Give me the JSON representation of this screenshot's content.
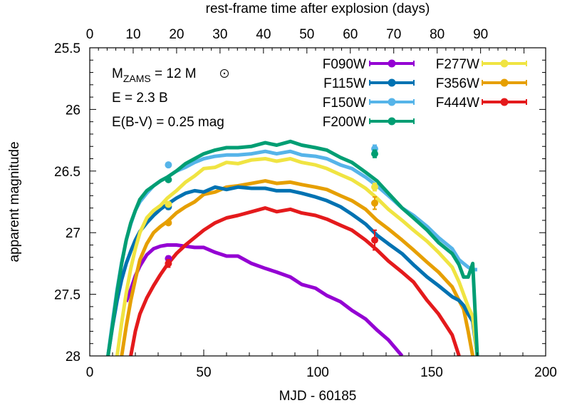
{
  "chart_data": {
    "type": "line",
    "title": "",
    "xlabel": "MJD - 60185",
    "ylabel": "apparent magnitude",
    "x2label": "rest-frame time after explosion (days)",
    "xlim": [
      0,
      200
    ],
    "ylim": [
      28,
      25.5
    ],
    "y_inverted": true,
    "xticks": [
      0,
      50,
      100,
      150,
      200
    ],
    "yticks": [
      25.5,
      26,
      26.5,
      27,
      27.5,
      28
    ],
    "ytick_labels": [
      "25.5",
      "26",
      "26.5",
      "27",
      "27.5",
      "28"
    ],
    "x2ticks": [
      0,
      10,
      20,
      30,
      40,
      50,
      60,
      70,
      80,
      90
    ],
    "x2_offset_mjd": 0,
    "x2_scale": 1.905,
    "grid": false,
    "legend_position": "upper right",
    "annotations": [
      {
        "text_main": "M",
        "text_sub": "ZAMS",
        "text_rest": " = 12 M",
        "symbol": "sun-symbol"
      },
      {
        "text": "E = 2.3 B"
      },
      {
        "text": "E(B-V) = 0.25 mag"
      }
    ],
    "x": [
      8,
      10,
      12,
      14,
      16,
      18,
      20,
      22,
      25,
      28,
      31,
      34,
      38,
      42,
      46,
      50,
      55,
      60,
      65,
      71,
      77,
      82,
      88,
      93,
      99,
      104,
      110,
      115,
      121,
      126,
      131,
      137,
      142,
      148,
      153,
      159,
      162,
      164,
      166,
      168,
      170
    ],
    "series": [
      {
        "name": "F090W",
        "color": "#9400d3",
        "values": [
          null,
          null,
          null,
          null,
          27.56,
          27.46,
          27.35,
          27.27,
          27.18,
          27.13,
          27.11,
          27.1,
          27.1,
          27.11,
          27.12,
          27.12,
          27.16,
          27.19,
          27.19,
          27.25,
          27.29,
          27.32,
          27.36,
          27.42,
          27.45,
          27.51,
          27.56,
          27.63,
          27.7,
          27.79,
          27.87,
          28.0,
          null,
          null,
          null,
          null,
          null,
          null,
          null,
          null,
          null
        ]
      },
      {
        "name": "F115W",
        "color": "#0072b2",
        "values": [
          28.0,
          27.76,
          27.55,
          27.38,
          27.25,
          27.15,
          27.06,
          26.99,
          26.92,
          26.86,
          26.81,
          26.77,
          26.72,
          26.68,
          26.66,
          26.67,
          26.63,
          26.65,
          26.63,
          26.64,
          26.64,
          26.66,
          26.66,
          26.68,
          26.71,
          26.74,
          26.79,
          26.85,
          26.93,
          27.02,
          27.09,
          27.17,
          27.26,
          27.36,
          27.43,
          27.52,
          27.55,
          27.59,
          27.66,
          27.72,
          28.0
        ]
      },
      {
        "name": "F150W",
        "color": "#56b4e9",
        "values": [
          28.0,
          27.72,
          27.46,
          27.24,
          27.06,
          26.93,
          26.82,
          26.75,
          26.68,
          26.62,
          26.58,
          26.55,
          26.5,
          26.47,
          26.43,
          26.4,
          26.38,
          26.37,
          26.37,
          26.36,
          26.34,
          26.36,
          26.34,
          26.37,
          26.38,
          26.4,
          26.45,
          26.48,
          26.55,
          26.62,
          26.7,
          26.8,
          26.86,
          26.95,
          27.04,
          27.13,
          27.22,
          27.25,
          27.28,
          27.3,
          27.3
        ]
      },
      {
        "name": "F200W",
        "color": "#009e73",
        "values": [
          28.0,
          27.75,
          27.48,
          27.25,
          27.06,
          26.92,
          26.82,
          26.73,
          26.66,
          26.62,
          26.58,
          26.55,
          26.5,
          26.44,
          26.4,
          26.36,
          26.33,
          26.31,
          26.31,
          26.3,
          26.27,
          26.29,
          26.26,
          26.29,
          26.31,
          26.33,
          26.39,
          26.43,
          26.51,
          26.58,
          26.68,
          26.8,
          26.88,
          26.98,
          27.08,
          27.17,
          27.26,
          27.36,
          27.36,
          27.25,
          28.0
        ]
      },
      {
        "name": "F277W",
        "color": "#f0e442",
        "values": [
          null,
          null,
          28.0,
          27.73,
          27.49,
          27.29,
          27.13,
          27.0,
          26.88,
          26.82,
          26.78,
          26.72,
          26.66,
          26.59,
          26.54,
          26.48,
          26.47,
          26.43,
          26.44,
          26.41,
          26.4,
          26.42,
          26.4,
          26.43,
          26.45,
          26.48,
          26.53,
          26.57,
          26.64,
          26.72,
          26.81,
          26.9,
          26.98,
          27.07,
          27.16,
          27.28,
          27.4,
          27.5,
          27.6,
          27.68,
          28.0
        ]
      },
      {
        "name": "F356W",
        "color": "#e69f00",
        "values": [
          null,
          null,
          null,
          28.0,
          27.76,
          27.55,
          27.38,
          27.22,
          27.09,
          27.0,
          26.95,
          26.91,
          26.84,
          26.79,
          26.75,
          26.69,
          26.67,
          26.63,
          26.62,
          26.6,
          26.58,
          26.6,
          26.59,
          26.61,
          26.63,
          26.65,
          26.7,
          26.74,
          26.81,
          26.9,
          26.97,
          27.06,
          27.14,
          27.24,
          27.32,
          27.44,
          27.55,
          27.62,
          27.8,
          28.0,
          null
        ]
      },
      {
        "name": "F444W",
        "color": "#e41a1c",
        "values": [
          null,
          null,
          null,
          null,
          null,
          28.0,
          27.8,
          27.66,
          27.53,
          27.43,
          27.34,
          27.26,
          27.17,
          27.1,
          27.04,
          26.98,
          26.92,
          26.88,
          26.86,
          26.83,
          26.8,
          26.83,
          26.81,
          26.84,
          26.86,
          26.89,
          26.94,
          26.98,
          27.06,
          27.14,
          27.23,
          27.32,
          27.4,
          27.55,
          27.66,
          27.83,
          28.0,
          null,
          null,
          null,
          null
        ]
      }
    ],
    "observations": [
      {
        "filter": "F090W",
        "x": 34.5,
        "y": 27.21,
        "err": 0.02
      },
      {
        "filter": "F115W",
        "x": 34.5,
        "y": 26.79,
        "err": 0.02
      },
      {
        "filter": "F150W",
        "x": 34.5,
        "y": 26.45,
        "err": 0.01
      },
      {
        "filter": "F200W",
        "x": 34.5,
        "y": 26.57,
        "err": 0.01
      },
      {
        "filter": "F277W",
        "x": 34.5,
        "y": 26.77,
        "err": 0.01
      },
      {
        "filter": "F356W",
        "x": 34.5,
        "y": 26.92,
        "err": 0.01
      },
      {
        "filter": "F444W",
        "x": 34.5,
        "y": 27.25,
        "err": 0.03
      },
      {
        "filter": "F150W",
        "x": 125,
        "y": 26.32,
        "err": 0.03
      },
      {
        "filter": "F200W",
        "x": 125,
        "y": 26.36,
        "err": 0.03
      },
      {
        "filter": "F277W",
        "x": 125,
        "y": 26.63,
        "err": 0.03
      },
      {
        "filter": "F356W",
        "x": 125,
        "y": 26.76,
        "err": 0.05
      },
      {
        "filter": "F444W",
        "x": 125,
        "y": 27.06,
        "err": 0.08
      }
    ],
    "legend": [
      {
        "label": "F090W",
        "color": "#9400d3",
        "col": 0,
        "row": 0
      },
      {
        "label": "F115W",
        "color": "#0072b2",
        "col": 0,
        "row": 1
      },
      {
        "label": "F150W",
        "color": "#56b4e9",
        "col": 0,
        "row": 2
      },
      {
        "label": "F200W",
        "color": "#009e73",
        "col": 0,
        "row": 3
      },
      {
        "label": "F277W",
        "color": "#f0e442",
        "col": 1,
        "row": 0
      },
      {
        "label": "F356W",
        "color": "#e69f00",
        "col": 1,
        "row": 1
      },
      {
        "label": "F444W",
        "color": "#e41a1c",
        "col": 1,
        "row": 2
      }
    ]
  }
}
